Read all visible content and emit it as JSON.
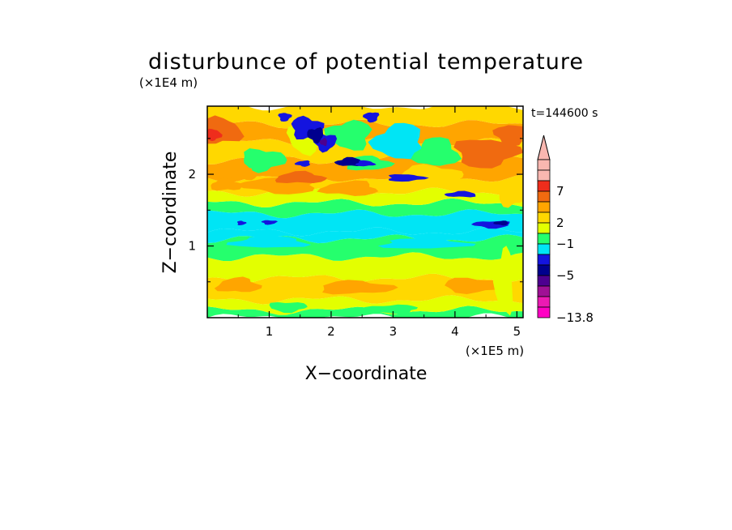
{
  "chart_data": {
    "type": "heatmap",
    "title": "disturbunce of potential temperature",
    "time_label": "t=144600 s",
    "xlabel": "X−coordinate",
    "ylabel": "Z−coordinate",
    "x_unit_label": "(×1E5 m)",
    "y_unit_label": "(×1E4 m)",
    "xlim": [
      0,
      5.1
    ],
    "ylim": [
      0,
      2.95
    ],
    "x_ticks": [
      1,
      2,
      3,
      4,
      5
    ],
    "x_tick_labels": [
      "1",
      "2",
      "3",
      "4",
      "5"
    ],
    "y_ticks": [
      1,
      2
    ],
    "y_tick_labels": [
      "1",
      "2"
    ],
    "colorbar": {
      "label_values": [
        "7",
        "2",
        "−1",
        "−5",
        "−13.8"
      ],
      "levels": [
        {
          "color": "#f9b7b0"
        },
        {
          "color": "#f9b7b0"
        },
        {
          "color": "#ef2d1c"
        },
        {
          "color": "#f06a10"
        },
        {
          "color": "#ffa500"
        },
        {
          "color": "#ffd800"
        },
        {
          "color": "#e3ff00"
        },
        {
          "color": "#25ff6d"
        },
        {
          "color": "#00e5f5"
        },
        {
          "color": "#1414df"
        },
        {
          "color": "#00008e"
        },
        {
          "color": "#4d0090"
        },
        {
          "color": "#a01095"
        },
        {
          "color": "#ec1ab3"
        },
        {
          "color": "#ff00c4"
        }
      ]
    },
    "bands": [
      {
        "z": [
          0.0,
          0.1
        ],
        "color": "#25ff6d"
      },
      {
        "z": [
          0.1,
          0.25
        ],
        "color": "#e3ff00"
      },
      {
        "z": [
          0.25,
          0.55
        ],
        "color": "#ffd800"
      },
      {
        "z": [
          0.55,
          0.85
        ],
        "color": "#e3ff00"
      },
      {
        "z": [
          0.85,
          1.1
        ],
        "color": "#25ff6d"
      },
      {
        "z": [
          1.1,
          1.2
        ],
        "color": "#00e5f5"
      },
      {
        "z": [
          1.2,
          1.45
        ],
        "color": "#00e5f5"
      },
      {
        "z": [
          1.45,
          1.6
        ],
        "color": "#25ff6d"
      },
      {
        "z": [
          1.6,
          1.75
        ],
        "color": "#e3ff00"
      },
      {
        "z": [
          1.75,
          1.95
        ],
        "color": "#ffd800"
      },
      {
        "z": [
          1.95,
          2.2
        ],
        "color": "#ffa500"
      },
      {
        "z": [
          2.2,
          2.45
        ],
        "color": "#ffd800"
      },
      {
        "z": [
          2.45,
          2.7
        ],
        "color": "#ffa500"
      },
      {
        "z": [
          2.7,
          2.95
        ],
        "color": "#ffd800"
      }
    ],
    "blobs": [
      {
        "x": 0.5,
        "z": 0.45,
        "rx": 0.35,
        "rz": 0.1,
        "color": "#ffa500"
      },
      {
        "x": 2.4,
        "z": 0.42,
        "rx": 0.6,
        "rz": 0.09,
        "color": "#ffa500"
      },
      {
        "x": 4.3,
        "z": 0.45,
        "rx": 0.5,
        "rz": 0.1,
        "color": "#ffa500"
      },
      {
        "x": 1.3,
        "z": 0.15,
        "rx": 0.3,
        "rz": 0.07,
        "color": "#25ff6d"
      },
      {
        "x": 3.0,
        "z": 0.12,
        "rx": 0.4,
        "rz": 0.06,
        "color": "#25ff6d"
      },
      {
        "x": 4.8,
        "z": 0.5,
        "rx": 0.15,
        "rz": 0.45,
        "color": "#e3ff00"
      },
      {
        "x": 1.0,
        "z": 1.05,
        "rx": 0.6,
        "rz": 0.08,
        "color": "#00e5f5"
      },
      {
        "x": 3.5,
        "z": 1.03,
        "rx": 0.7,
        "rz": 0.07,
        "color": "#00e5f5"
      },
      {
        "x": 0.55,
        "z": 1.32,
        "rx": 0.07,
        "rz": 0.03,
        "color": "#1414df"
      },
      {
        "x": 1.0,
        "z": 1.33,
        "rx": 0.12,
        "rz": 0.03,
        "color": "#1414df"
      },
      {
        "x": 4.6,
        "z": 1.3,
        "rx": 0.3,
        "rz": 0.05,
        "color": "#1414df"
      },
      {
        "x": 4.75,
        "z": 1.32,
        "rx": 0.12,
        "rz": 0.03,
        "color": "#00008e"
      },
      {
        "x": 4.1,
        "z": 1.72,
        "rx": 0.25,
        "rz": 0.04,
        "color": "#1414df"
      },
      {
        "x": 0.2,
        "z": 2.6,
        "rx": 0.35,
        "rz": 0.18,
        "color": "#f06a10"
      },
      {
        "x": 0.1,
        "z": 2.55,
        "rx": 0.12,
        "rz": 0.08,
        "color": "#ef2d1c"
      },
      {
        "x": 4.5,
        "z": 2.3,
        "rx": 0.5,
        "rz": 0.2,
        "color": "#f06a10"
      },
      {
        "x": 4.9,
        "z": 2.55,
        "rx": 0.25,
        "rz": 0.15,
        "color": "#f06a10"
      },
      {
        "x": 1.2,
        "z": 1.85,
        "rx": 0.6,
        "rz": 0.12,
        "color": "#ffa500"
      },
      {
        "x": 2.3,
        "z": 1.8,
        "rx": 0.45,
        "rz": 0.1,
        "color": "#ffa500"
      },
      {
        "x": 1.5,
        "z": 1.95,
        "rx": 0.4,
        "rz": 0.08,
        "color": "#f06a10"
      },
      {
        "x": 3.6,
        "z": 2.0,
        "rx": 0.5,
        "rz": 0.12,
        "color": "#ffd800"
      },
      {
        "x": 0.9,
        "z": 2.2,
        "rx": 0.35,
        "rz": 0.15,
        "color": "#25ff6d"
      },
      {
        "x": 1.6,
        "z": 2.5,
        "rx": 0.3,
        "rz": 0.2,
        "color": "#e3ff00"
      },
      {
        "x": 2.3,
        "z": 2.55,
        "rx": 0.35,
        "rz": 0.2,
        "color": "#25ff6d"
      },
      {
        "x": 3.1,
        "z": 2.45,
        "rx": 0.4,
        "rz": 0.25,
        "color": "#00e5f5"
      },
      {
        "x": 3.7,
        "z": 2.3,
        "rx": 0.35,
        "rz": 0.2,
        "color": "#25ff6d"
      },
      {
        "x": 2.6,
        "z": 2.15,
        "rx": 0.35,
        "rz": 0.1,
        "color": "#25ff6d"
      },
      {
        "x": 1.6,
        "z": 2.65,
        "rx": 0.25,
        "rz": 0.15,
        "color": "#1414df"
      },
      {
        "x": 1.9,
        "z": 2.45,
        "rx": 0.18,
        "rz": 0.12,
        "color": "#1414df"
      },
      {
        "x": 1.75,
        "z": 2.55,
        "rx": 0.13,
        "rz": 0.1,
        "color": "#00008e"
      },
      {
        "x": 1.88,
        "z": 2.45,
        "rx": 0.06,
        "rz": 0.05,
        "color": "#4d0090"
      },
      {
        "x": 2.3,
        "z": 2.17,
        "rx": 0.22,
        "rz": 0.06,
        "color": "#00008e"
      },
      {
        "x": 2.55,
        "z": 2.15,
        "rx": 0.15,
        "rz": 0.04,
        "color": "#1414df"
      },
      {
        "x": 3.2,
        "z": 1.95,
        "rx": 0.3,
        "rz": 0.05,
        "color": "#1414df"
      },
      {
        "x": 1.25,
        "z": 2.8,
        "rx": 0.1,
        "rz": 0.06,
        "color": "#1414df"
      },
      {
        "x": 2.65,
        "z": 2.8,
        "rx": 0.12,
        "rz": 0.07,
        "color": "#1414df"
      },
      {
        "x": 1.55,
        "z": 2.15,
        "rx": 0.12,
        "rz": 0.04,
        "color": "#1414df"
      },
      {
        "x": 0.6,
        "z": 2.0,
        "rx": 0.2,
        "rz": 0.08,
        "color": "#ffa500"
      },
      {
        "x": 0.3,
        "z": 1.85,
        "rx": 0.25,
        "rz": 0.08,
        "color": "#ffa500"
      },
      {
        "x": 4.9,
        "z": 1.7,
        "rx": 0.2,
        "rz": 0.15,
        "color": "#ffd800"
      }
    ]
  }
}
